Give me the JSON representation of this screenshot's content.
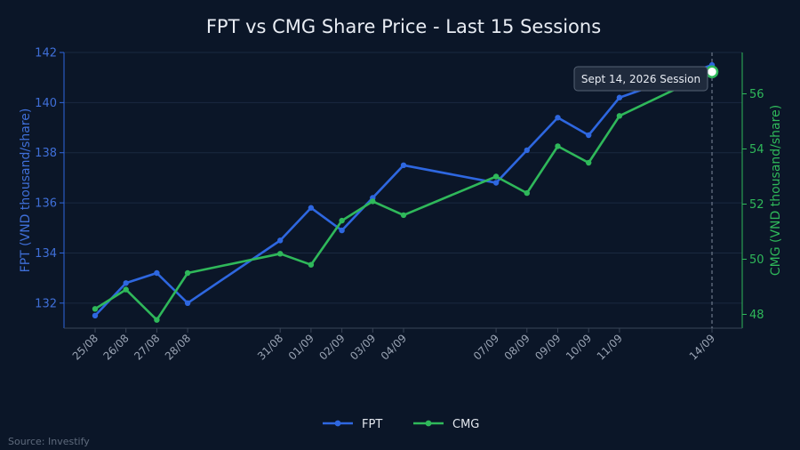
{
  "chart_data": {
    "type": "line",
    "title": "FPT vs CMG Share Price - Last 15 Sessions",
    "source": "Source: Investify",
    "categories": [
      "25/08",
      "26/08",
      "27/08",
      "28/08",
      "31/08",
      "01/09",
      "02/09",
      "03/09",
      "04/09",
      "07/09",
      "08/09",
      "09/09",
      "10/09",
      "11/09",
      "14/09"
    ],
    "day_offsets": [
      0,
      1,
      2,
      3,
      6,
      7,
      8,
      9,
      10,
      13,
      14,
      15,
      16,
      17,
      20
    ],
    "series": [
      {
        "name": "FPT",
        "color": "#2e67e0",
        "axis": "left",
        "values": [
          131.5,
          132.8,
          133.2,
          132.0,
          134.5,
          135.8,
          134.9,
          136.2,
          137.5,
          136.8,
          138.1,
          139.4,
          138.7,
          140.2,
          141.5
        ]
      },
      {
        "name": "CMG",
        "color": "#2fb85a",
        "axis": "right",
        "values": [
          48.2,
          48.9,
          47.8,
          49.5,
          50.2,
          49.8,
          51.4,
          52.1,
          51.6,
          53.0,
          52.4,
          54.1,
          53.5,
          55.2,
          56.8
        ]
      }
    ],
    "y_left": {
      "label": "FPT (VND thousand/share)",
      "range": [
        131.0,
        142.0
      ],
      "ticks": [
        132,
        134,
        136,
        138,
        140,
        142
      ]
    },
    "y_right": {
      "label": "CMG (VND thousand/share)",
      "range": [
        47.5,
        57.5
      ],
      "ticks": [
        48,
        50,
        52,
        54,
        56
      ]
    },
    "legend": {
      "position": "bottom-center"
    },
    "annotation": {
      "text": "Sept 14, 2026 Session",
      "category": "14/09"
    },
    "grid": true
  }
}
